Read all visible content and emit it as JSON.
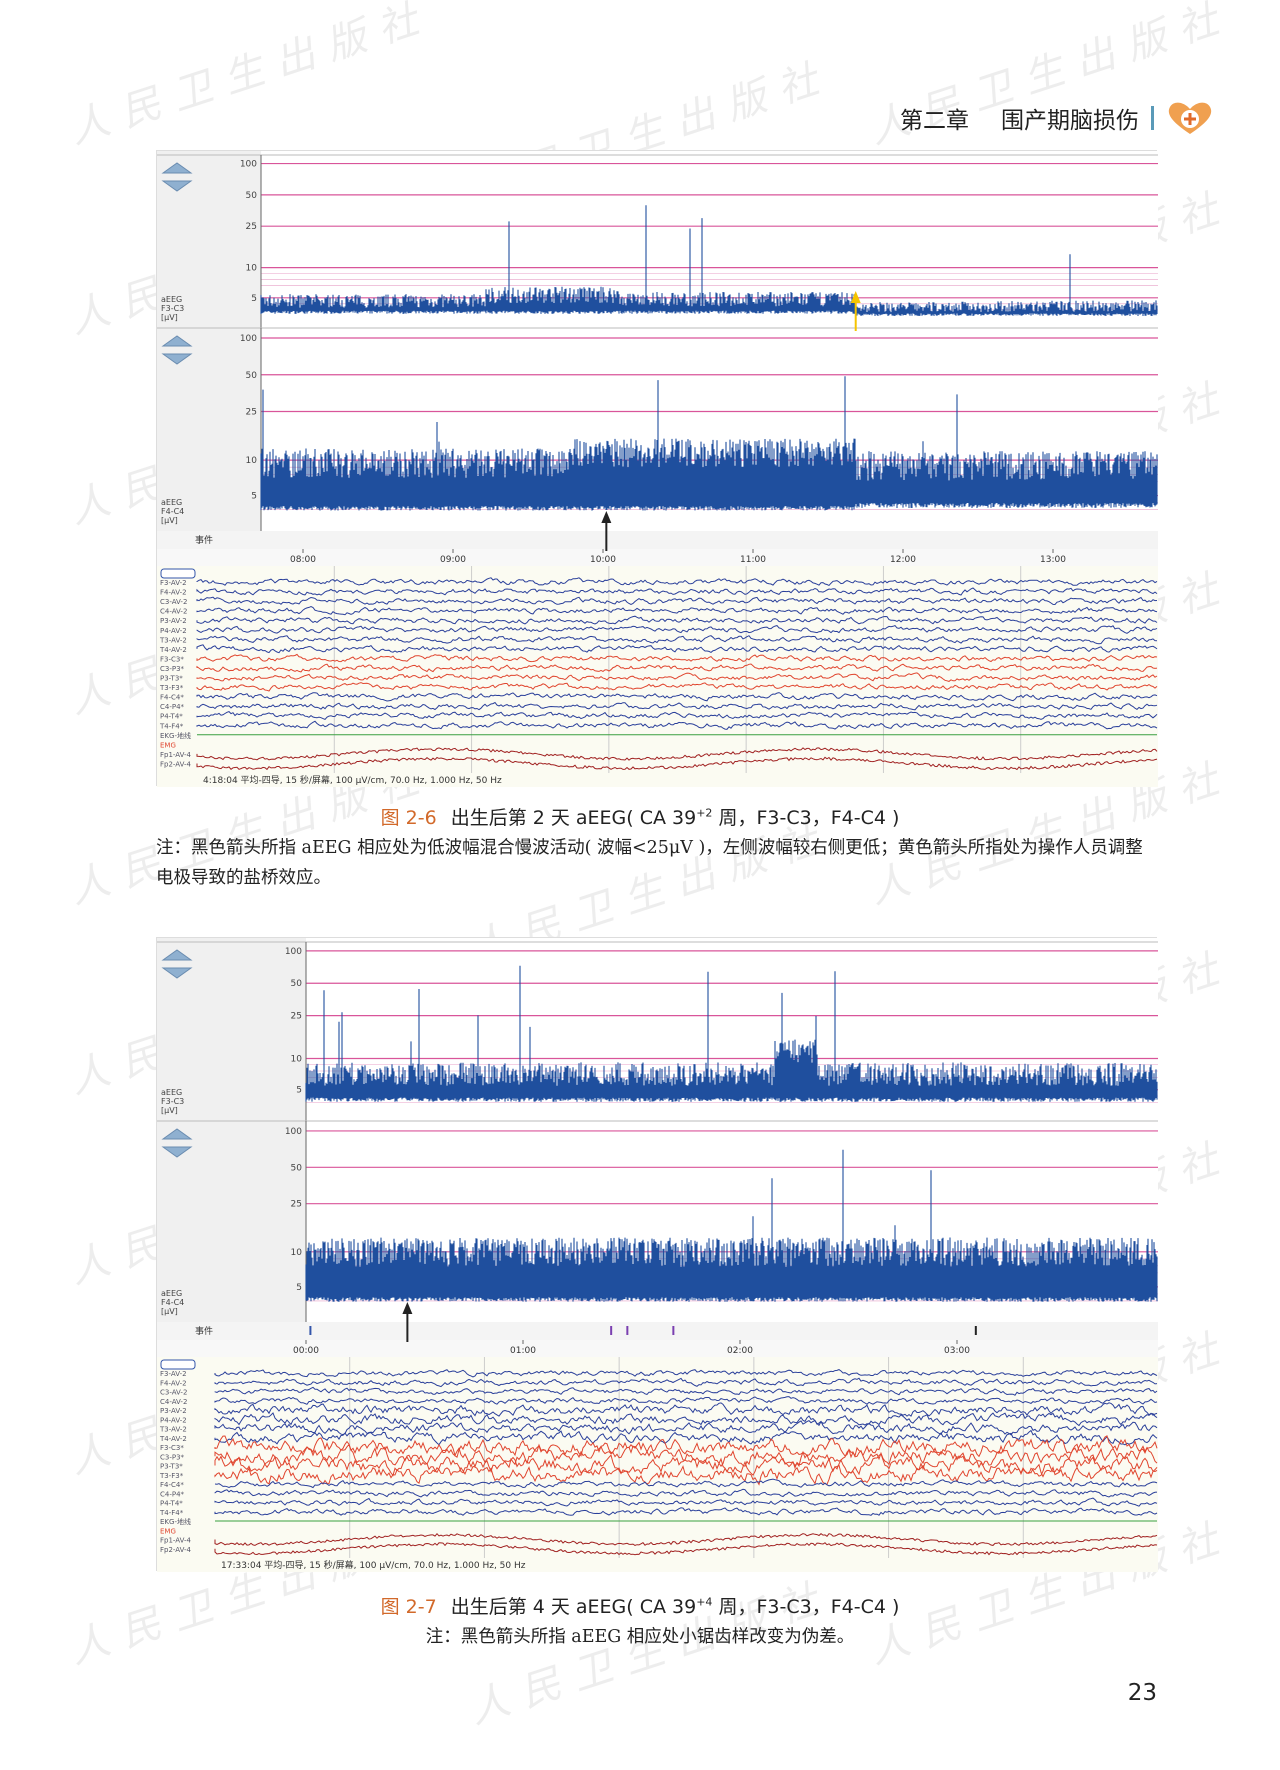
{
  "header": {
    "chapter": "第二章",
    "title": "围产期脑损伤",
    "logo": "heart-plus-logo"
  },
  "watermark": "人民卫生出版社",
  "figures": [
    {
      "id": "fig-2-6",
      "number": "图 2-6",
      "caption_main": "出生后第 2 天 aEEG( CA 39",
      "caption_sup": "+2",
      "caption_tail": " 周，F3-C3，F4-C4 )",
      "note": "注：黑色箭头所指 aEEG 相应处为低波幅混合慢波活动( 波幅<25μV )，左侧波幅较右侧更低；黄色箭头所指处为操作人员调整电极导致的盐桥效应。",
      "y_ticks": [
        "100",
        "50",
        "25",
        "10",
        "5"
      ],
      "panels": [
        {
          "label": [
            "aEEG",
            "F3-C3",
            "[μV]"
          ]
        },
        {
          "label": [
            "aEEG",
            "F4-C4",
            "[μV]"
          ]
        }
      ],
      "event_label": "事件",
      "time_ticks": [
        "08:00",
        "09:00",
        "10:00",
        "11:00",
        "12:00",
        "13:00"
      ],
      "channels": [
        "F3-AV-2",
        "F4-AV-2",
        "C3-AV-2",
        "C4-AV-2",
        "P3-AV-2",
        "P4-AV-2",
        "T3-AV-2",
        "T4-AV-2",
        "F3-C3*",
        "C3-P3*",
        "P3-T3*",
        "T3-F3*",
        "F4-C4*",
        "C4-P4*",
        "P4-T4*",
        "T4-F4*",
        "EKG-地线",
        "EMG",
        "Fp1-AV-4",
        "Fp2-AV-4"
      ],
      "status": "4:18:04 平均-四导, 15 秒/屏幕, 100 μV/cm, 70.0 Hz, 1.000 Hz, 50 Hz",
      "arrows": [
        {
          "color": "black",
          "at_fraction": 0.385
        },
        {
          "color": "yellow",
          "at_fraction": 0.663
        }
      ]
    },
    {
      "id": "fig-2-7",
      "number": "图 2-7",
      "caption_main": "出生后第 4 天 aEEG( CA 39",
      "caption_sup": "+4",
      "caption_tail": " 周，F3-C3，F4-C4 )",
      "note": "注：黑色箭头所指 aEEG 相应处小锯齿样改变为伪差。",
      "y_ticks": [
        "100",
        "50",
        "25",
        "10",
        "5"
      ],
      "panels": [
        {
          "label": [
            "aEEG",
            "F3-C3",
            "[μV]"
          ]
        },
        {
          "label": [
            "aEEG",
            "F4-C4",
            "[μV]"
          ]
        }
      ],
      "event_label": "事件",
      "time_ticks": [
        "00:00",
        "01:00",
        "02:00",
        "03:00"
      ],
      "channels": [
        "F3-AV-2",
        "F4-AV-2",
        "C3-AV-2",
        "C4-AV-2",
        "P3-AV-2",
        "P4-AV-2",
        "T3-AV-2",
        "T4-AV-2",
        "F3-C3*",
        "C3-P3*",
        "P3-T3*",
        "T3-F3*",
        "F4-C4*",
        "C4-P4*",
        "P4-T4*",
        "T4-F4*",
        "EKG-地线",
        "EMG",
        "Fp1-AV-4",
        "Fp2-AV-4"
      ],
      "status": "17:33:04 平均-四导, 15 秒/屏幕, 100 μV/cm, 70.0 Hz, 1.000 Hz, 50 Hz",
      "arrows": [
        {
          "color": "black",
          "at_fraction": 0.119
        }
      ]
    }
  ],
  "page_number": "23",
  "colors": {
    "trace_blue": "#1f4f9e",
    "grid_pink": "#d9559a",
    "eeg_red": "#e0452e",
    "caption_orange": "#d2692a"
  }
}
